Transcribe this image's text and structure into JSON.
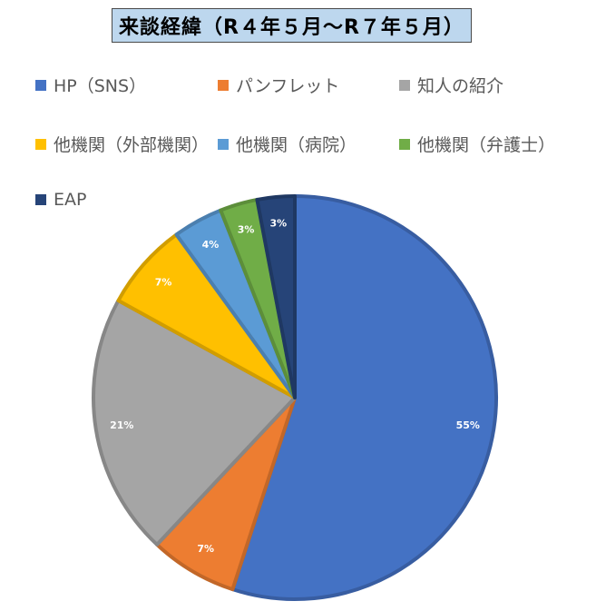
{
  "title": "来談経緯（R４年５月～R７年５月）",
  "chart_data": {
    "type": "pie",
    "title": "来談経緯（R４年５月～R７年５月）",
    "unit": "%",
    "legend_position": "top",
    "slices": [
      {
        "name": "HP（SNS）",
        "value": 55,
        "label": "55%",
        "color": "#4472c4"
      },
      {
        "name": "パンフレット",
        "value": 7,
        "label": "7%",
        "color": "#ed7d31"
      },
      {
        "name": "知人の紹介",
        "value": 21,
        "label": "21%",
        "color": "#a5a5a5"
      },
      {
        "name": "他機関（外部機関）",
        "value": 7,
        "label": "7%",
        "color": "#ffc000"
      },
      {
        "name": "他機関（病院）",
        "value": 4,
        "label": "4%",
        "color": "#5b9bd5"
      },
      {
        "name": "他機関（弁護士）",
        "value": 3,
        "label": "3%",
        "color": "#70ad47"
      },
      {
        "name": "EAP",
        "value": 3,
        "label": "3%",
        "color": "#264478"
      }
    ]
  }
}
